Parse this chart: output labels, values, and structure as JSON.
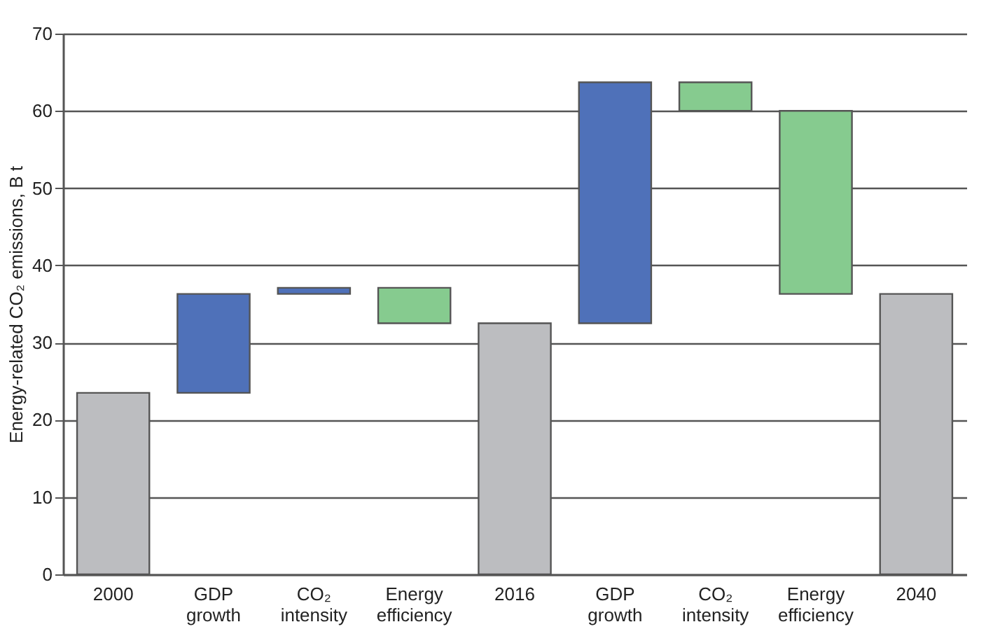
{
  "chart_data": {
    "type": "bar",
    "ylabel": "Energy-related CO₂ emissions, B t",
    "categories": [
      "2000",
      "GDP growth",
      "CO₂ intensity",
      "Energy efficiency",
      "2016",
      "GDP growth",
      "CO₂ intensity",
      "Energy efficiency",
      "2040"
    ],
    "values": [
      23.5,
      12.8,
      0.8,
      -4.6,
      32.5,
      31.2,
      -3.7,
      -23.7,
      36.3
    ],
    "base": [
      0,
      23.5,
      36.3,
      37.1,
      0,
      32.5,
      63.7,
      60,
      0
    ],
    "colors": [
      "#bcbdc0",
      "#4f71b9",
      "#4f71b9",
      "#86cb8f",
      "#bcbdc0",
      "#4f71b9",
      "#86cb8f",
      "#86cb8f",
      "#bcbdc0"
    ],
    "ylim": [
      0,
      70
    ],
    "yticks": [
      0,
      10,
      20,
      30,
      40,
      50,
      60,
      70
    ],
    "grid": "y"
  }
}
